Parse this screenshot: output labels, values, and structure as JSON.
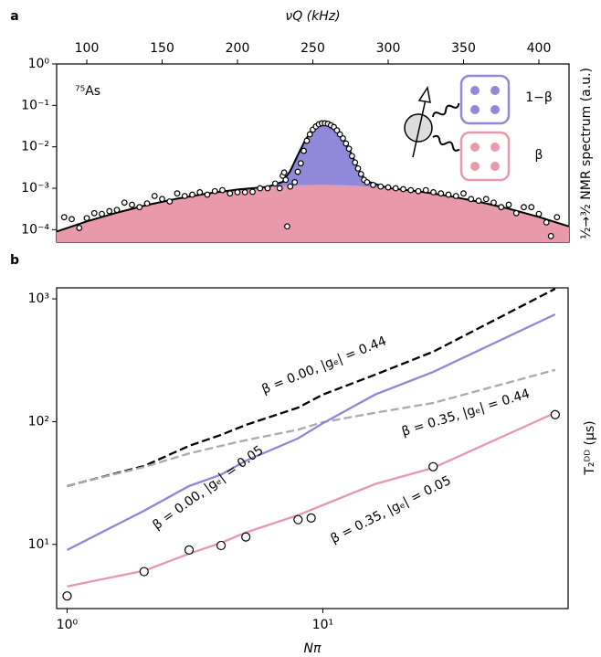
{
  "chart_data": [
    {
      "type": "area",
      "panel_label": "a",
      "xlabel": "νQ (kHz)",
      "ylabel": "½→³⁄₂ NMR spectrum (a.u.)",
      "annotation": "⁷⁵As",
      "x_axis_side": "top",
      "log_y": true,
      "xlim": [
        80,
        420
      ],
      "xticks": [
        100,
        150,
        200,
        250,
        300,
        350,
        400
      ],
      "ylim": [
        5e-05,
        1
      ],
      "yticks": [
        {
          "value": 1,
          "label": "10⁰"
        },
        {
          "value": 0.1,
          "label": "10⁻¹"
        },
        {
          "value": 0.01,
          "label": "10⁻²"
        },
        {
          "value": 0.001,
          "label": "10⁻³"
        },
        {
          "value": 0.0001,
          "label": "10⁻⁴"
        }
      ],
      "x": [
        80,
        100,
        120,
        140,
        160,
        180,
        200,
        220,
        230,
        235,
        240,
        245,
        250,
        255,
        258,
        260,
        265,
        270,
        275,
        280,
        285,
        300,
        320,
        340,
        360,
        380,
        400,
        420
      ],
      "series": [
        {
          "name": "β",
          "color": "#e89aab",
          "values": [
            9e-05,
            0.000158,
            0.000257,
            0.000393,
            0.000561,
            0.000747,
            0.000931,
            0.00108,
            0.00113,
            0.00116,
            0.00118,
            0.00119,
            0.0012,
            0.0012,
            0.0012,
            0.0012,
            0.00119,
            0.00118,
            0.00116,
            0.00114,
            0.0011,
            0.00101,
            0.000841,
            0.000653,
            0.000473,
            0.000321,
            0.000203,
            0.00012
          ]
        },
        {
          "name": "1−β",
          "color": "#9088d8",
          "values": [
            0,
            0,
            0,
            0,
            0,
            0,
            0,
            0,
            0.0003,
            0.00144,
            0.0051,
            0.0134,
            0.0256,
            0.0359,
            0.038,
            0.0371,
            0.0281,
            0.0156,
            0.0064,
            0.0019,
            0.00042,
            0,
            0,
            0,
            0,
            0,
            0,
            0
          ]
        }
      ],
      "line_color": "#000000",
      "points": {
        "x": [
          85,
          90,
          95,
          100,
          105,
          110,
          115,
          120,
          125,
          130,
          135,
          140,
          145,
          150,
          155,
          160,
          165,
          170,
          175,
          180,
          185,
          190,
          195,
          200,
          205,
          210,
          215,
          220,
          225,
          228,
          230,
          231,
          232,
          233,
          235,
          238,
          240,
          242,
          244,
          246,
          248,
          250,
          252,
          254,
          256,
          258,
          260,
          262,
          264,
          266,
          268,
          270,
          272,
          274,
          276,
          278,
          280,
          282,
          284,
          286,
          290,
          295,
          300,
          305,
          310,
          315,
          320,
          325,
          330,
          335,
          340,
          345,
          350,
          355,
          360,
          365,
          370,
          375,
          380,
          385,
          390,
          395,
          400,
          405,
          408,
          412
        ],
        "y": [
          0.0002,
          0.00018,
          0.00011,
          0.00019,
          0.00025,
          0.00024,
          0.00028,
          0.0003,
          0.00045,
          0.0004,
          0.00035,
          0.00043,
          0.00065,
          0.00055,
          0.00048,
          0.00075,
          0.00065,
          0.0007,
          0.0008,
          0.0007,
          0.00085,
          0.0009,
          0.00075,
          0.0008,
          0.0008,
          0.00082,
          0.001,
          0.001,
          0.0013,
          0.001,
          0.002,
          0.0024,
          0.0016,
          0.00012,
          0.0011,
          0.0014,
          0.0025,
          0.004,
          0.008,
          0.014,
          0.02,
          0.026,
          0.031,
          0.035,
          0.037,
          0.037,
          0.036,
          0.033,
          0.03,
          0.025,
          0.02,
          0.016,
          0.012,
          0.009,
          0.006,
          0.0042,
          0.003,
          0.0022,
          0.0016,
          0.0014,
          0.0012,
          0.0011,
          0.00105,
          0.001,
          0.00095,
          0.0009,
          0.00085,
          0.0009,
          0.0008,
          0.00075,
          0.0007,
          0.00065,
          0.00075,
          0.00055,
          0.0005,
          0.00055,
          0.00045,
          0.00035,
          0.0004,
          0.00025,
          0.00035,
          0.00035,
          0.00024,
          0.00015,
          7e-05,
          0.0002
        ]
      }
    },
    {
      "type": "line",
      "panel_label": "b",
      "xlabel": "Nπ",
      "ylabel": "T₂ᴰᴰ (μs)",
      "x_axis_side": "bottom",
      "log_x": true,
      "log_y": true,
      "xlim": [
        0.91,
        91
      ],
      "xticks": [
        {
          "value": 1,
          "label": "10⁰"
        },
        {
          "value": 10,
          "label": "10¹"
        }
      ],
      "ylim": [
        3.0,
        1230
      ],
      "yticks": [
        {
          "value": 10,
          "label": "10¹"
        },
        {
          "value": 100,
          "label": "10²"
        },
        {
          "value": 1000,
          "label": "10³"
        }
      ],
      "x": [
        1,
        2,
        3,
        4,
        5,
        8,
        10,
        16,
        27,
        81
      ],
      "series": [
        {
          "name": "β = 0.00, |gₑ| = 0.44",
          "color": "#000000",
          "dashed": true,
          "values": [
            29.9,
            43.5,
            63.5,
            78,
            94,
            130,
            166,
            241,
            371,
            1208
          ]
        },
        {
          "name": "β = 0.35, |gₑ| = 0.44",
          "color": "#aaaaaa",
          "dashed": true,
          "values": [
            30,
            42.7,
            55,
            63.5,
            70.6,
            86,
            99,
            118,
            142,
            264
          ]
        },
        {
          "name": "β = 0.00, |gₑ| = 0.05",
          "color": "#8f86d6",
          "dashed": false,
          "values": [
            9.0,
            18.8,
            29.9,
            37,
            48,
            73,
            97,
            166,
            254,
            748
          ]
        },
        {
          "name": "β = 0.35, |gₑ| = 0.05",
          "color": "#e699ab",
          "dashed": false,
          "values": [
            4.55,
            6.1,
            8.4,
            10.3,
            12.5,
            17.3,
            20.9,
            31,
            42,
            118
          ]
        }
      ],
      "points": {
        "x": [
          1,
          2,
          3,
          4,
          5,
          8,
          9,
          27,
          81
        ],
        "y": [
          3.8,
          6.0,
          9.0,
          9.8,
          11.5,
          15.9,
          16.4,
          42.9,
          114
        ]
      }
    }
  ]
}
